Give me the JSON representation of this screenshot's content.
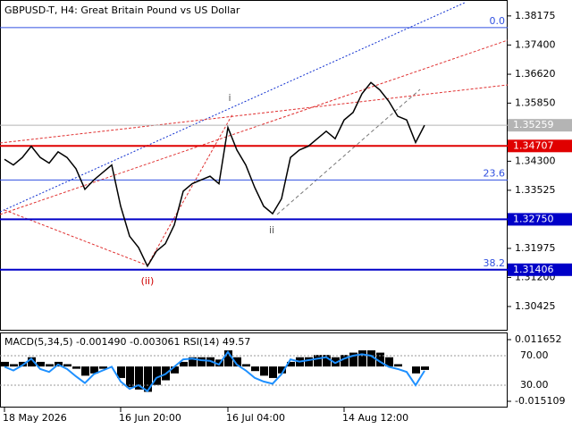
{
  "chart_data": {
    "type": "line",
    "title": "GBPUSD-T, H4:  Great Britain Pound vs US Dollar",
    "color": "#000000",
    "values": [
      1.3435,
      1.342,
      1.344,
      1.347,
      1.344,
      1.3425,
      1.3455,
      1.344,
      1.341,
      1.3355,
      1.338,
      1.34,
      1.342,
      1.331,
      1.323,
      1.32,
      1.315,
      1.319,
      1.321,
      1.326,
      1.335,
      1.337,
      1.338,
      1.339,
      1.337,
      1.352,
      1.346,
      1.342,
      1.336,
      1.331,
      1.329,
      1.333,
      1.344,
      1.346,
      1.347,
      1.349,
      1.351,
      1.349,
      1.354,
      1.356,
      1.361,
      1.364,
      1.362,
      1.359,
      1.355,
      1.354,
      1.348,
      1.3526
    ],
    "ylim": [
      1.2978,
      1.386
    ],
    "yticks": [
      {
        "value": 1.38175,
        "label": "1.38175"
      },
      {
        "value": 1.374,
        "label": "1.37400"
      },
      {
        "value": 1.3662,
        "label": "1.36620"
      },
      {
        "value": 1.3585,
        "label": "1.35850"
      },
      {
        "value": 1.343,
        "label": "1.34300"
      },
      {
        "value": 1.33525,
        "label": "1.33525"
      },
      {
        "value": 1.31975,
        "label": "1.31975"
      },
      {
        "value": 1.312,
        "label": "1.31200"
      },
      {
        "value": 1.30425,
        "label": "1.30425"
      }
    ],
    "hlines": [
      {
        "value": 1.35259,
        "label": "1.35259",
        "color": "#b4b4b4"
      },
      {
        "value": 1.34707,
        "label": "1.34707",
        "color": "#e00000"
      },
      {
        "value": 1.3275,
        "label": "1.32750",
        "color": "#0000c8"
      },
      {
        "value": 1.31406,
        "label": "1.31406",
        "color": "#0000c8",
        "fib": "38.2"
      },
      {
        "value": 1.37865,
        "color": "#3050e0",
        "fib": "0.0"
      },
      {
        "value": 1.338,
        "color": "#3050e0",
        "fib": "23.6"
      }
    ],
    "annotations": [
      {
        "text": "i",
        "color": "#555555"
      },
      {
        "text": "ii",
        "color": "#555555"
      },
      {
        "text": "(ii)",
        "color": "#d00000"
      }
    ],
    "xticks": [
      {
        "value": 0,
        "label": "18 May 2026"
      },
      {
        "value": 13,
        "label": "16 Jun 20:00"
      },
      {
        "value": 25,
        "label": "16 Jul 04:00"
      },
      {
        "value": 38,
        "label": "14 Aug 12:00"
      }
    ],
    "indicator": {
      "title": "MACD(5,34,5) -0.001490 -0.003061 RSI(14) 49.57",
      "macd": [
        0.002,
        0.001,
        0.002,
        0.004,
        0.002,
        0.001,
        0.002,
        0.001,
        -0.001,
        -0.004,
        -0.003,
        -0.001,
        0.0,
        -0.005,
        -0.009,
        -0.01,
        -0.011,
        -0.008,
        -0.006,
        -0.003,
        0.002,
        0.004,
        0.004,
        0.004,
        0.003,
        0.007,
        0.004,
        0.001,
        -0.002,
        -0.004,
        -0.005,
        -0.003,
        0.002,
        0.004,
        0.004,
        0.005,
        0.005,
        0.004,
        0.005,
        0.006,
        0.007,
        0.007,
        0.006,
        0.004,
        0.001,
        0.0,
        -0.003,
        -0.0015
      ],
      "rsi": [
        55,
        50,
        57,
        66,
        52,
        48,
        58,
        52,
        42,
        33,
        45,
        50,
        55,
        35,
        25,
        30,
        22,
        40,
        45,
        55,
        65,
        66,
        64,
        63,
        58,
        75,
        58,
        50,
        40,
        35,
        32,
        45,
        65,
        62,
        64,
        66,
        68,
        60,
        66,
        70,
        72,
        70,
        62,
        55,
        52,
        48,
        30,
        49.57
      ],
      "ylim": [
        -0.017437,
        0.013591
      ],
      "yticks": [
        0.011652,
        -0.015109
      ],
      "y2lim": [
        0.9,
        97.9
      ],
      "y2ticks": [
        {
          "value": 70,
          "label": "70.00"
        },
        {
          "value": 30,
          "label": "30.00"
        }
      ],
      "rsi_color": "#1e90ff"
    }
  }
}
